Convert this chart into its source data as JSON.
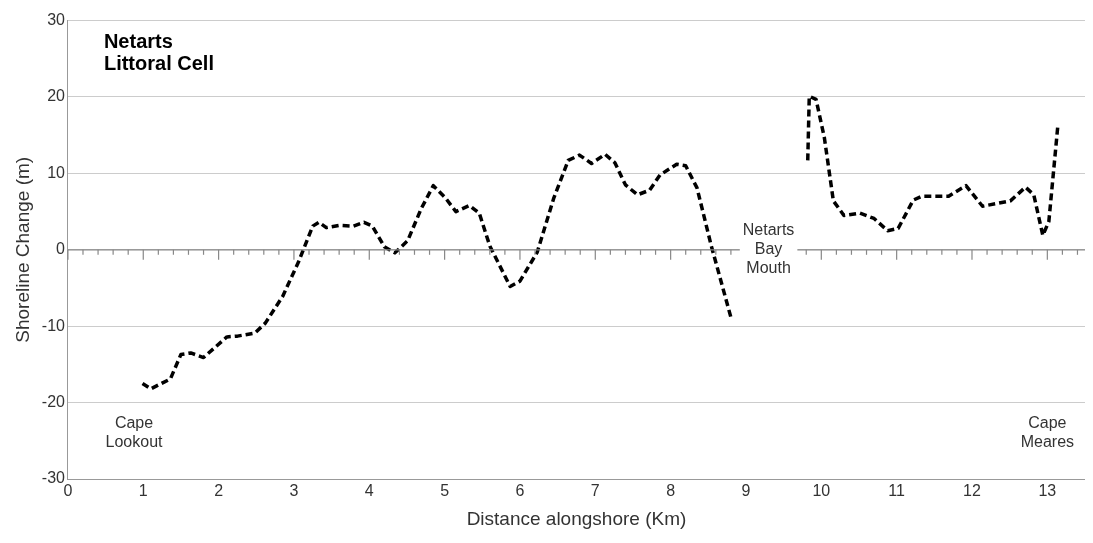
{
  "chart_data": {
    "type": "line",
    "title": "Netarts\nLittoral Cell",
    "xlabel": "Distance alongshore (Km)",
    "ylabel": "Shoreline Change (m)",
    "x": [
      0.99,
      1.1,
      1.36,
      1.5,
      1.63,
      1.8,
      2.11,
      2.25,
      2.48,
      2.62,
      2.85,
      3.06,
      3.25,
      3.33,
      3.43,
      3.6,
      3.79,
      3.93,
      4.04,
      4.2,
      4.34,
      4.51,
      4.69,
      4.85,
      5.01,
      5.15,
      5.33,
      5.46,
      5.6,
      5.87,
      6.0,
      6.23,
      6.45,
      6.64,
      6.79,
      6.95,
      7.13,
      7.26,
      7.4,
      7.56,
      7.72,
      7.86,
      8.08,
      8.2,
      8.35,
      8.54,
      8.81,
      9.3,
      9.82,
      9.84,
      9.93,
      10.04,
      10.16,
      10.3,
      10.51,
      10.7,
      10.88,
      11.02,
      11.22,
      11.33,
      11.69,
      11.92,
      12.14,
      12.51,
      12.71,
      12.82,
      12.94,
      13.02,
      13.14
    ],
    "series": [
      {
        "color": "#000000",
        "values": [
          -17.5,
          -18.2,
          -16.9,
          -13.7,
          -13.5,
          -14.1,
          -11.4,
          -11.3,
          -10.9,
          -9.6,
          -6.1,
          -1.6,
          3.1,
          3.6,
          2.9,
          3.2,
          3.1,
          3.6,
          3.1,
          0.4,
          -0.4,
          1.2,
          5.4,
          8.4,
          6.8,
          5.0,
          5.8,
          4.8,
          0.5,
          -4.8,
          -4.1,
          -0.3,
          6.8,
          11.7,
          12.4,
          11.3,
          12.5,
          11.4,
          8.5,
          7.2,
          7.8,
          9.8,
          11.2,
          11.0,
          8.1,
          0.5,
          -9.2,
          null,
          11.7,
          20.1,
          19.7,
          14.7,
          6.4,
          4.5,
          4.8,
          4.1,
          2.5,
          2.8,
          6.5,
          7.0,
          7.0,
          8.4,
          5.7,
          6.4,
          8.2,
          7.2,
          1.9,
          3.7,
          16.3
        ]
      }
    ],
    "xlim": [
      0,
      13.5
    ],
    "xticks": [
      0,
      1,
      2,
      3,
      4,
      5,
      6,
      7,
      8,
      9,
      10,
      11,
      12,
      13
    ],
    "ylim": [
      -30,
      30
    ],
    "yticks": [
      -30,
      -20,
      -10,
      0,
      10,
      20,
      30
    ],
    "grid": "y",
    "legend": false,
    "marker": "none",
    "line_style": "dashed",
    "annotations": [
      "Cape\nLookout",
      "Netarts\nBay\nMouth",
      "Cape\nMeares"
    ]
  }
}
